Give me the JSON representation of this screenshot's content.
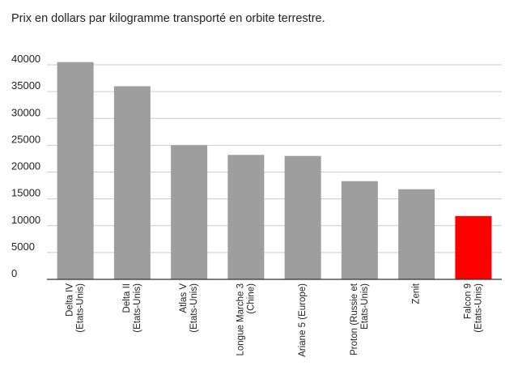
{
  "chart_data": {
    "type": "bar",
    "title": "Prix en dollars par kilogramme transporté en orbite terrestre.",
    "xlabel": "",
    "ylabel": "",
    "ylim": [
      0,
      40000
    ],
    "yticks": [
      0,
      5000,
      10000,
      15000,
      20000,
      25000,
      30000,
      35000,
      40000
    ],
    "ytick_labels": [
      "0",
      "5000",
      "10000",
      "15000",
      "20000",
      "25000",
      "30000",
      "35000",
      "40000"
    ],
    "grid": true,
    "categories": [
      [
        "Delta IV",
        "(Etats-Unis)"
      ],
      [
        "Delta II",
        "(Etats-Unis)"
      ],
      [
        "Atlas V",
        "(Etats-Unis)"
      ],
      [
        "Longue Marche 3",
        "(Chine)"
      ],
      [
        "Ariane 5 (Europe)"
      ],
      [
        "Proton (Russie et",
        "Etats-Unis)"
      ],
      [
        "Zenit"
      ],
      [
        "Falcon 9",
        "(Etats-Unis)"
      ]
    ],
    "values": [
      40500,
      36000,
      25000,
      23200,
      23000,
      18300,
      16800,
      11800
    ],
    "colors": [
      "#9e9e9e",
      "#9e9e9e",
      "#9e9e9e",
      "#9e9e9e",
      "#9e9e9e",
      "#9e9e9e",
      "#9e9e9e",
      "#ff0000"
    ]
  }
}
